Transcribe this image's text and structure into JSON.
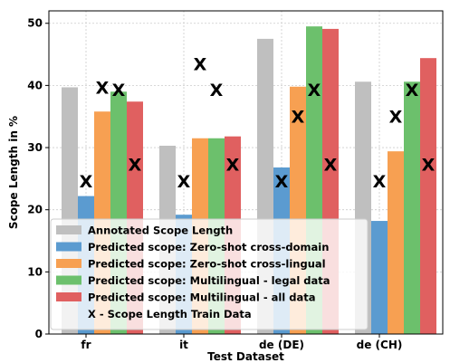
{
  "chart_data": {
    "type": "bar",
    "xlabel": "Test Dataset",
    "ylabel": "Scope Length in %",
    "ylim": [
      0,
      52
    ],
    "yticks": [
      0,
      10,
      20,
      30,
      40,
      50
    ],
    "grid": true,
    "legend_position": "lower-left",
    "categories": [
      "fr",
      "it",
      "de (DE)",
      "de (CH)"
    ],
    "series": [
      {
        "name": "Annotated Scope Length",
        "color": "#bfbfbf",
        "values": [
          39.7,
          30.3,
          47.5,
          40.6
        ]
      },
      {
        "name": "Predicted scope: Zero-shot cross-domain",
        "color": "#5b9bd0",
        "values": [
          22.2,
          19.2,
          26.8,
          18.2
        ]
      },
      {
        "name": "Predicted scope: Zero-shot cross-lingual",
        "color": "#f7a052",
        "values": [
          35.8,
          31.5,
          39.8,
          29.4
        ]
      },
      {
        "name": "Predicted scope: Multilingual - legal data",
        "color": "#6cc06c",
        "values": [
          39.0,
          31.5,
          49.5,
          40.6
        ]
      },
      {
        "name": "Predicted scope: Multilingual - all data",
        "color": "#e06060",
        "values": [
          37.4,
          31.8,
          49.1,
          44.4
        ]
      }
    ],
    "markers": {
      "name": "X - Scope Length Train Data",
      "symbol": "X",
      "values": [
        [
          24.6,
          39.7,
          39.3,
          27.3
        ],
        [
          24.6,
          43.5,
          39.3,
          27.3
        ],
        [
          24.6,
          35.0,
          39.3,
          27.3
        ],
        [
          24.6,
          35.0,
          39.3,
          27.3
        ]
      ]
    }
  }
}
